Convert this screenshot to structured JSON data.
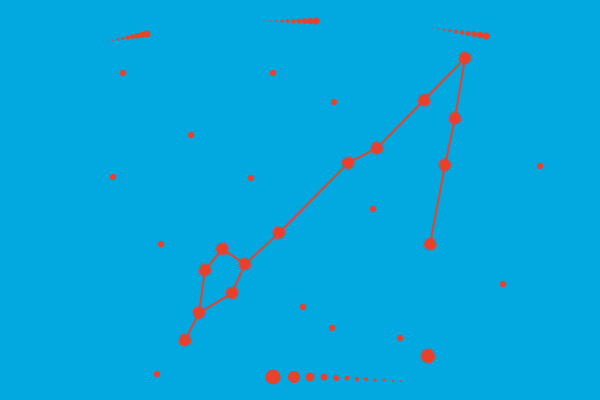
{
  "colors": {
    "background": "#02a9e0",
    "star": "#e8412c"
  },
  "scene": {
    "subject": "constellation",
    "background_stars": 17,
    "bright_stars": 14,
    "shooting_stars": 4
  }
}
